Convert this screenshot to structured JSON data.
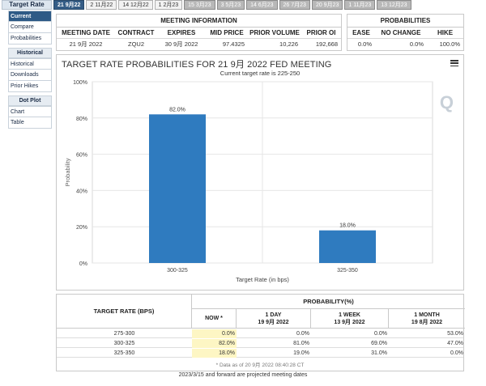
{
  "tabs": {
    "title": "Target Rate",
    "dates": [
      "21 9月22",
      "2 11月22",
      "14 12月22",
      "1 2月23",
      "15 3月23",
      "3 5月23",
      "14 6月23",
      "26 7月23",
      "20 9月23",
      "1 11月23",
      "13 12月23"
    ],
    "active_index": 0
  },
  "sidebar": {
    "group1": [
      "Current",
      "Compare",
      "Probabilities"
    ],
    "historical_head": "Historical",
    "group2": [
      "Historical",
      "Downloads",
      "Prior Hikes"
    ],
    "dotplot_head": "Dot Plot",
    "group3": [
      "Chart",
      "Table"
    ]
  },
  "meeting_info": {
    "title": "MEETING INFORMATION",
    "headers": [
      "MEETING DATE",
      "CONTRACT",
      "EXPIRES",
      "MID PRICE",
      "PRIOR VOLUME",
      "PRIOR OI"
    ],
    "values": [
      "21 9月 2022",
      "ZQU2",
      "30 9月 2022",
      "97.4325",
      "10,226",
      "192,668"
    ]
  },
  "probabilities": {
    "title": "PROBABILITIES",
    "headers": [
      "EASE",
      "NO CHANGE",
      "HIKE"
    ],
    "values": [
      "0.0%",
      "0.0%",
      "100.0%"
    ]
  },
  "chart": {
    "title": "TARGET RATE PROBABILITIES FOR 21 9月 2022 FED MEETING",
    "subtitle": "Current target rate is 225-250"
  },
  "chart_data": {
    "type": "bar",
    "categories": [
      "300-325",
      "325-350"
    ],
    "values": [
      82.0,
      18.0
    ],
    "value_labels": [
      "82.0%",
      "18.0%"
    ],
    "xlabel": "Target Rate (in bps)",
    "ylabel": "Probability",
    "ylim": [
      0,
      100
    ],
    "yticks": [
      "0%",
      "20%",
      "40%",
      "60%",
      "80%",
      "100%"
    ],
    "grid": true,
    "bar_color": "#2f7bbf"
  },
  "prob_table": {
    "target_rate_header": "TARGET RATE (BPS)",
    "probability_header": "PROBABILITY(%)",
    "col_now": "NOW *",
    "col_1day": [
      "1 DAY",
      "19 9月 2022"
    ],
    "col_1week": [
      "1 WEEK",
      "13 9月 2022"
    ],
    "col_1month": [
      "1 MONTH",
      "19 8月 2022"
    ],
    "rows": [
      {
        "rate": "275-300",
        "now": "0.0%",
        "day": "0.0%",
        "week": "0.0%",
        "month": "53.0%"
      },
      {
        "rate": "300-325",
        "now": "82.0%",
        "day": "81.0%",
        "week": "69.0%",
        "month": "47.0%"
      },
      {
        "rate": "325-350",
        "now": "18.0%",
        "day": "19.0%",
        "week": "31.0%",
        "month": "0.0%"
      }
    ],
    "data_note": "* Data as of 20 9月 2022 08:40:28 CT",
    "footer": "2023/3/15 and forward are projected meeting dates"
  }
}
